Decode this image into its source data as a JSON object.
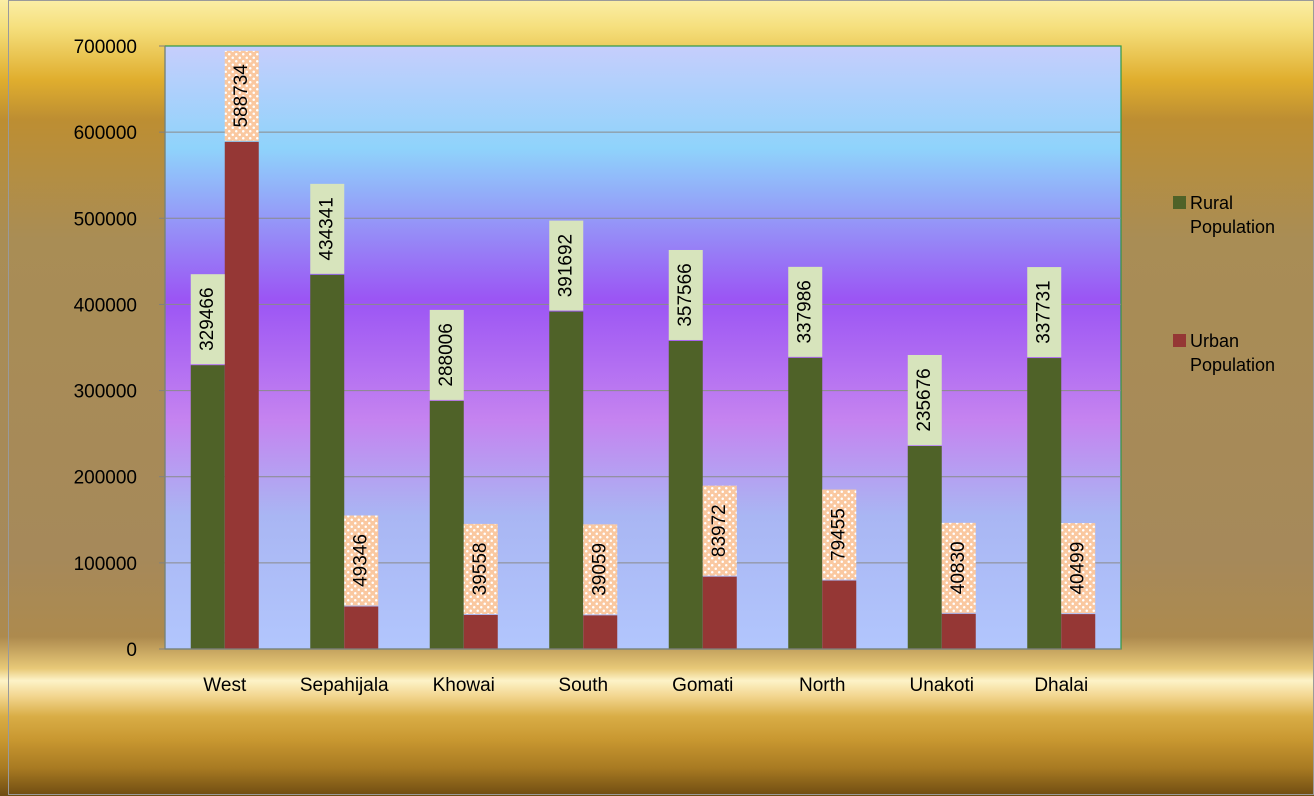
{
  "chart_data": {
    "type": "bar",
    "categories": [
      "West",
      "Sepahijala",
      "Khowai",
      "South",
      "Gomati",
      "North",
      "Unakoti",
      "Dhalai"
    ],
    "series": [
      {
        "name": "Rural Population",
        "values": [
          329466,
          434341,
          288006,
          391692,
          357566,
          337986,
          235676,
          337731
        ]
      },
      {
        "name": "Urban Population",
        "values": [
          588734,
          49346,
          39558,
          39059,
          83972,
          79455,
          40830,
          40499
        ]
      }
    ],
    "y_ticks": [
      "0",
      "100000",
      "200000",
      "300000",
      "400000",
      "500000",
      "600000",
      "700000"
    ],
    "ylim": [
      0,
      700000
    ],
    "title": "",
    "xlabel": "",
    "ylabel": "",
    "grid": true,
    "legend_position": "right",
    "legend_lines": [
      [
        "Rural",
        "Population"
      ],
      [
        "Urban",
        "Population"
      ]
    ],
    "colors": {
      "rural": "#4f6228",
      "urban": "#953735",
      "rural_label_bg": "#d7e4bc",
      "urban_label_bg": "#fac8a0",
      "urban_label_dot": "#ffffff",
      "gridline": "#8a8a8a",
      "axis": "#808080",
      "plot_border": "#2e9a48",
      "text": "#000000"
    }
  }
}
